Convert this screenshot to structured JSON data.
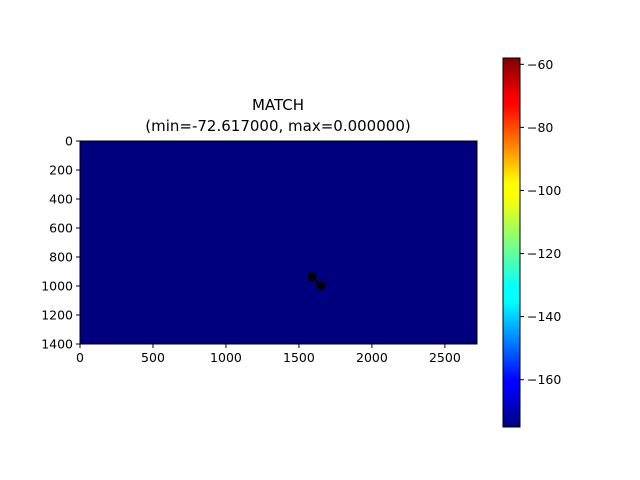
{
  "chart_data": {
    "type": "heatmap",
    "title": "MATCH",
    "subtitle": "(min=-72.617000, max=0.000000)",
    "xlabel": "",
    "ylabel": "",
    "xlim": [
      0,
      2720
    ],
    "ylim": [
      1400,
      0
    ],
    "x_ticks": [
      0,
      500,
      1000,
      1500,
      2000,
      2500
    ],
    "y_ticks": [
      0,
      200,
      400,
      600,
      800,
      1000,
      1200,
      1400
    ],
    "field_color": "#00007f",
    "colormap": "jet",
    "colorbar": {
      "range": [
        -175,
        -58
      ],
      "ticks": [
        -60,
        -80,
        -100,
        -120,
        -140,
        -160
      ],
      "tick_labels": [
        "−60",
        "−80",
        "−100",
        "−120",
        "−140",
        "−160"
      ]
    },
    "markers": [
      {
        "x": 1590,
        "y": 935
      },
      {
        "x": 1650,
        "y": 998
      }
    ],
    "marker_color": "#000000",
    "grid": false,
    "legend": "none"
  }
}
